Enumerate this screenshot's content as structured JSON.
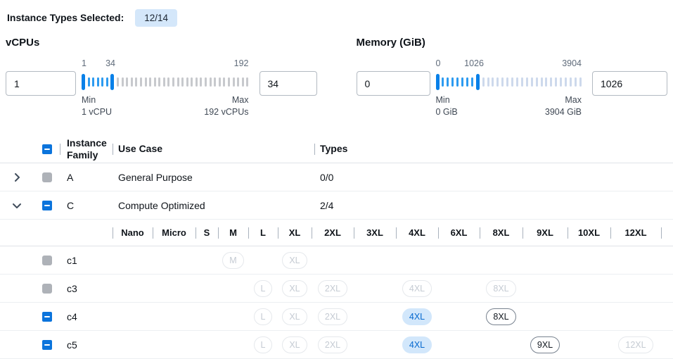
{
  "header": {
    "label": "Instance Types Selected:",
    "badge": "12/14"
  },
  "filters": {
    "vcpus": {
      "title": "vCPUs",
      "min_value": "1",
      "max_value": "34",
      "scale": {
        "start": "1",
        "current": "34",
        "end": "192"
      },
      "min_caption_line1": "Min",
      "min_caption_line2": "1 vCPU",
      "max_caption_line1": "Max",
      "max_caption_line2": "192 vCPUs",
      "range_min": 1,
      "range_max": 192,
      "selected_min": 1,
      "selected_max": 34
    },
    "memory": {
      "title": "Memory (GiB)",
      "min_value": "0",
      "max_value": "1026",
      "scale": {
        "start": "0",
        "current": "1026",
        "end": "3904"
      },
      "min_caption_line1": "Min",
      "min_caption_line2": "0 GiB",
      "max_caption_line1": "Max",
      "max_caption_line2": "3904 GiB",
      "range_min": 0,
      "range_max": 3904,
      "selected_min": 0,
      "selected_max": 1026
    }
  },
  "table": {
    "select_all_state": "indeterminate",
    "columns": {
      "family": "Instance Family",
      "use_case": "Use Case",
      "types": "Types"
    },
    "size_columns": [
      "Nano",
      "Micro",
      "S",
      "M",
      "L",
      "XL",
      "2XL",
      "3XL",
      "4XL",
      "6XL",
      "8XL",
      "9XL",
      "10XL",
      "12XL"
    ],
    "families": [
      {
        "family": "A",
        "use_case": "General Purpose",
        "types": "0/0",
        "expanded": false,
        "checkbox": "disabled",
        "instances": []
      },
      {
        "family": "C",
        "use_case": "Compute Optimized",
        "types": "2/4",
        "expanded": true,
        "checkbox": "indeterminate",
        "instances": [
          {
            "name": "c1",
            "checkbox": "disabled",
            "sizes": [
              {
                "label": "M",
                "state": "disabled"
              },
              {
                "label": "XL",
                "state": "disabled"
              }
            ]
          },
          {
            "name": "c3",
            "checkbox": "disabled",
            "sizes": [
              {
                "label": "L",
                "state": "disabled"
              },
              {
                "label": "XL",
                "state": "disabled"
              },
              {
                "label": "2XL",
                "state": "disabled"
              },
              {
                "label": "4XL",
                "state": "disabled"
              },
              {
                "label": "8XL",
                "state": "disabled"
              }
            ]
          },
          {
            "name": "c4",
            "checkbox": "indeterminate",
            "sizes": [
              {
                "label": "L",
                "state": "disabled"
              },
              {
                "label": "XL",
                "state": "disabled"
              },
              {
                "label": "2XL",
                "state": "disabled"
              },
              {
                "label": "4XL",
                "state": "selected"
              },
              {
                "label": "8XL",
                "state": "enabled"
              }
            ]
          },
          {
            "name": "c5",
            "checkbox": "indeterminate",
            "sizes": [
              {
                "label": "L",
                "state": "disabled"
              },
              {
                "label": "XL",
                "state": "disabled"
              },
              {
                "label": "2XL",
                "state": "disabled"
              },
              {
                "label": "4XL",
                "state": "selected"
              },
              {
                "label": "9XL",
                "state": "enabled"
              },
              {
                "label": "12XL",
                "state": "disabled"
              }
            ]
          }
        ]
      }
    ]
  },
  "colors": {
    "accent_blue": "#0b74dc",
    "badge_background": "#d4e7fa",
    "selected_pill_background": "#d2e7fb",
    "selected_pill_text": "#0669cf",
    "slider_handle": "#0880e8",
    "slider_tick_selected": "#2d9bf0",
    "slider_tick_vcpu_off": "#c7c9cd",
    "slider_tick_memory_off": "#cdd9ec",
    "disabled_checkbox_grey": "#aeb2b8"
  }
}
